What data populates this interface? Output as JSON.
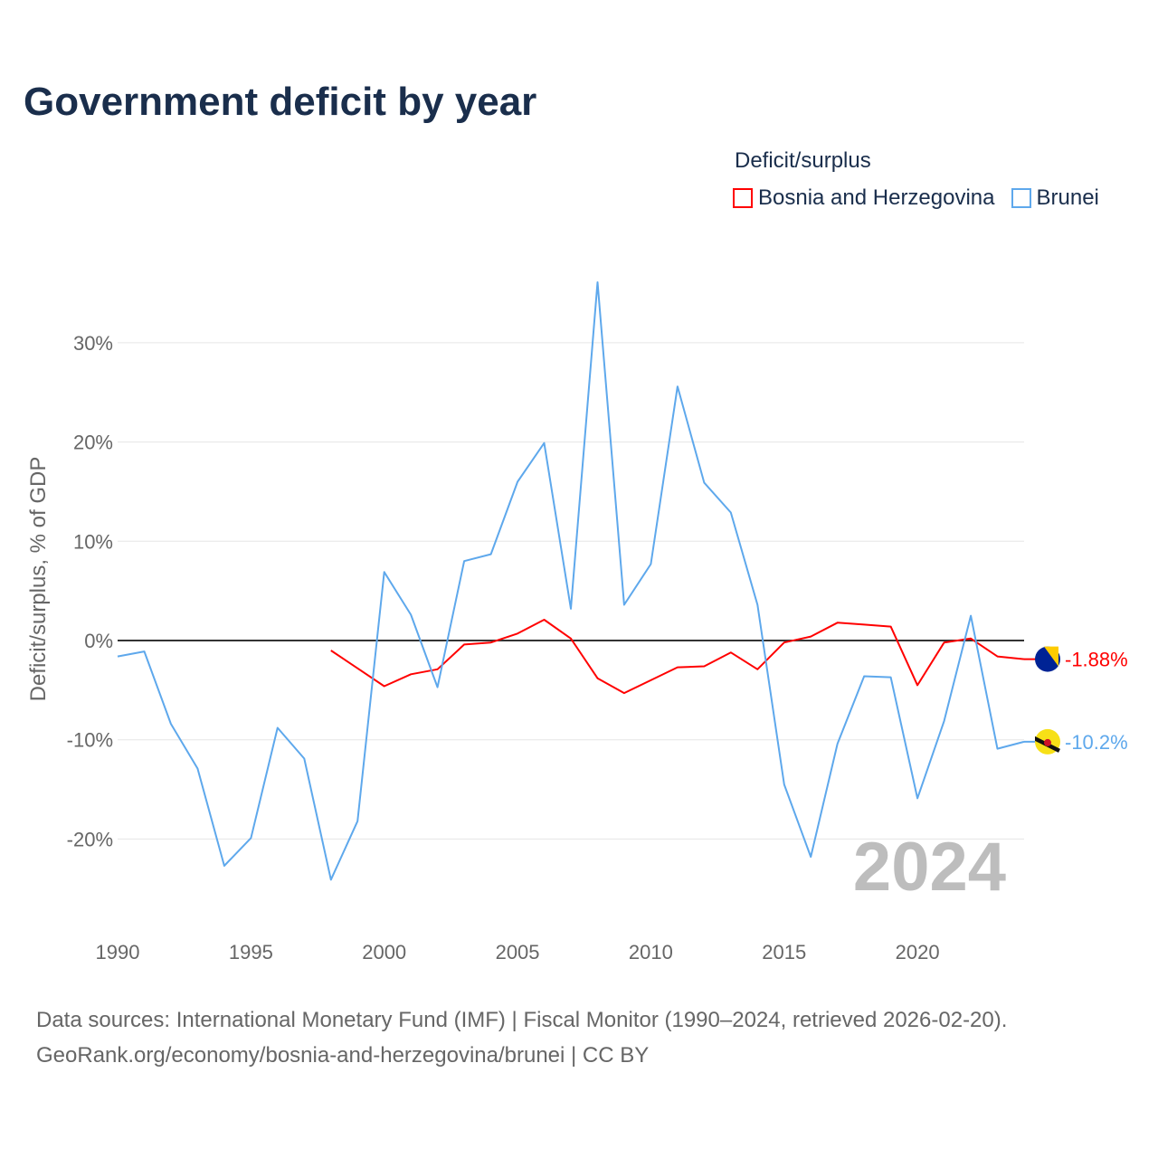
{
  "title": "Government deficit by year",
  "legend": {
    "title": "Deficit/surplus",
    "items": [
      {
        "label": "Bosnia and Herzegovina",
        "color": "#ff0000"
      },
      {
        "label": "Brunei",
        "color": "#5ea8ec"
      }
    ]
  },
  "source": {
    "line1": "Data sources: International Monetary Fund (IMF) | Fiscal Monitor (1990–2024, retrieved 2026-02-20).",
    "line2": "GeoRank.org/economy/bosnia-and-herzegovina/brunei | CC BY"
  },
  "chart_data": {
    "type": "line",
    "title": "Government deficit by year",
    "xlabel": "",
    "ylabel": "Deficit/surplus, % of GDP",
    "xlim": [
      1990,
      2024
    ],
    "ylim": [
      -28,
      36
    ],
    "x_ticks": [
      1990,
      1995,
      2000,
      2005,
      2010,
      2015,
      2020
    ],
    "y_ticks": [
      -20,
      -10,
      0,
      10,
      20,
      30
    ],
    "y_tick_labels": [
      "-20%",
      "-10%",
      "0%",
      "10%",
      "20%",
      "30%"
    ],
    "grid": true,
    "legend_position": "top-right",
    "year_watermark": "2024",
    "series": [
      {
        "name": "Bosnia and Herzegovina",
        "color": "#ff0000",
        "end_label": "-1.88%",
        "x": [
          1998,
          1999,
          2000,
          2001,
          2002,
          2003,
          2004,
          2005,
          2006,
          2007,
          2008,
          2009,
          2010,
          2011,
          2012,
          2013,
          2014,
          2015,
          2016,
          2017,
          2018,
          2019,
          2020,
          2021,
          2022,
          2023,
          2024
        ],
        "values": [
          -1.0,
          -2.8,
          -4.6,
          -3.4,
          -2.9,
          -0.4,
          -0.2,
          0.7,
          2.1,
          0.2,
          -3.8,
          -5.3,
          -4.0,
          -2.7,
          -2.6,
          -1.2,
          -2.9,
          -0.2,
          0.4,
          1.8,
          1.6,
          1.4,
          -4.5,
          -0.2,
          0.2,
          -1.6,
          -1.88
        ]
      },
      {
        "name": "Brunei",
        "color": "#5ea8ec",
        "end_label": "-10.2%",
        "x": [
          1990,
          1991,
          1992,
          1993,
          1994,
          1995,
          1996,
          1997,
          1998,
          1999,
          2000,
          2001,
          2002,
          2003,
          2004,
          2005,
          2006,
          2007,
          2008,
          2009,
          2010,
          2011,
          2012,
          2013,
          2014,
          2015,
          2016,
          2017,
          2018,
          2019,
          2020,
          2021,
          2022,
          2023,
          2024
        ],
        "values": [
          -1.6,
          -1.1,
          -8.4,
          -12.9,
          -22.7,
          -19.9,
          -8.8,
          -11.9,
          -24.1,
          -18.2,
          6.9,
          2.6,
          -4.7,
          8.0,
          8.7,
          16.0,
          19.9,
          3.2,
          36.1,
          3.6,
          7.7,
          25.6,
          15.9,
          12.9,
          3.6,
          -14.5,
          -21.8,
          -10.4,
          -3.6,
          -3.7,
          -15.9,
          -8.1,
          2.5,
          -10.9,
          -10.2
        ]
      }
    ]
  }
}
